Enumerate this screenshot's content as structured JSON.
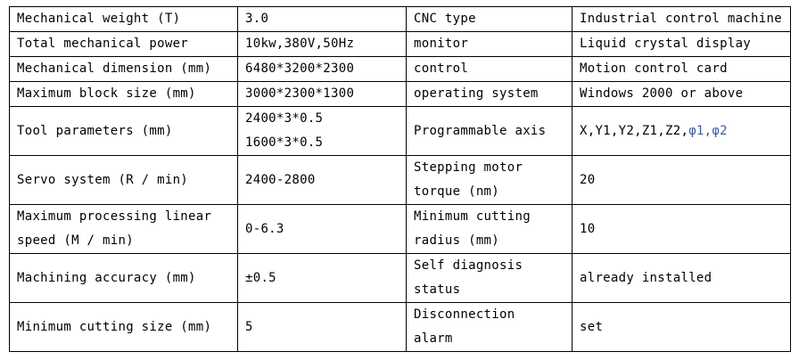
{
  "rows": [
    {
      "label": "Mechanical weight (T)",
      "value": "3.0",
      "label2": "CNC type",
      "value2": "Industrial control machine"
    },
    {
      "label": "Total mechanical power",
      "value": "10kw,380V,50Hz",
      "label2": "monitor",
      "value2": "Liquid crystal display"
    },
    {
      "label": "Mechanical dimension (mm)",
      "value": "6480*3200*2300",
      "label2": "control",
      "value2": "Motion control card"
    },
    {
      "label": "Maximum block size (mm)",
      "value": "3000*2300*1300",
      "label2": "operating system",
      "value2": "Windows 2000 or above"
    },
    {
      "label": "Tool parameters (mm)",
      "value_lines": [
        "2400*3*0.5",
        "1600*3*0.5"
      ],
      "label2": "Programmable axis",
      "value2": "X,Y1,Y2,Z1,Z2,",
      "value2_extra": "φ1,φ2"
    },
    {
      "label": "Servo system (R / min)",
      "value": "2400-2800",
      "label2_lines": [
        "Stepping motor",
        "torque (nm)"
      ],
      "value2": "20"
    },
    {
      "label_lines": [
        "Maximum processing linear",
        "speed (M / min)"
      ],
      "value": "0-6.3",
      "label2_lines": [
        "Minimum cutting",
        "radius (mm)"
      ],
      "value2": "10"
    },
    {
      "label": "Machining accuracy (mm)",
      "value": "±0.5",
      "label2_lines": [
        "Self diagnosis",
        "status"
      ],
      "value2": "already installed"
    },
    {
      "label": "Minimum cutting size (mm)",
      "value": "5",
      "label2_lines": [
        "Disconnection",
        "alarm"
      ],
      "value2": "set"
    }
  ],
  "colors": {
    "phi_text": "#3a5ea8",
    "border": "#000000"
  }
}
